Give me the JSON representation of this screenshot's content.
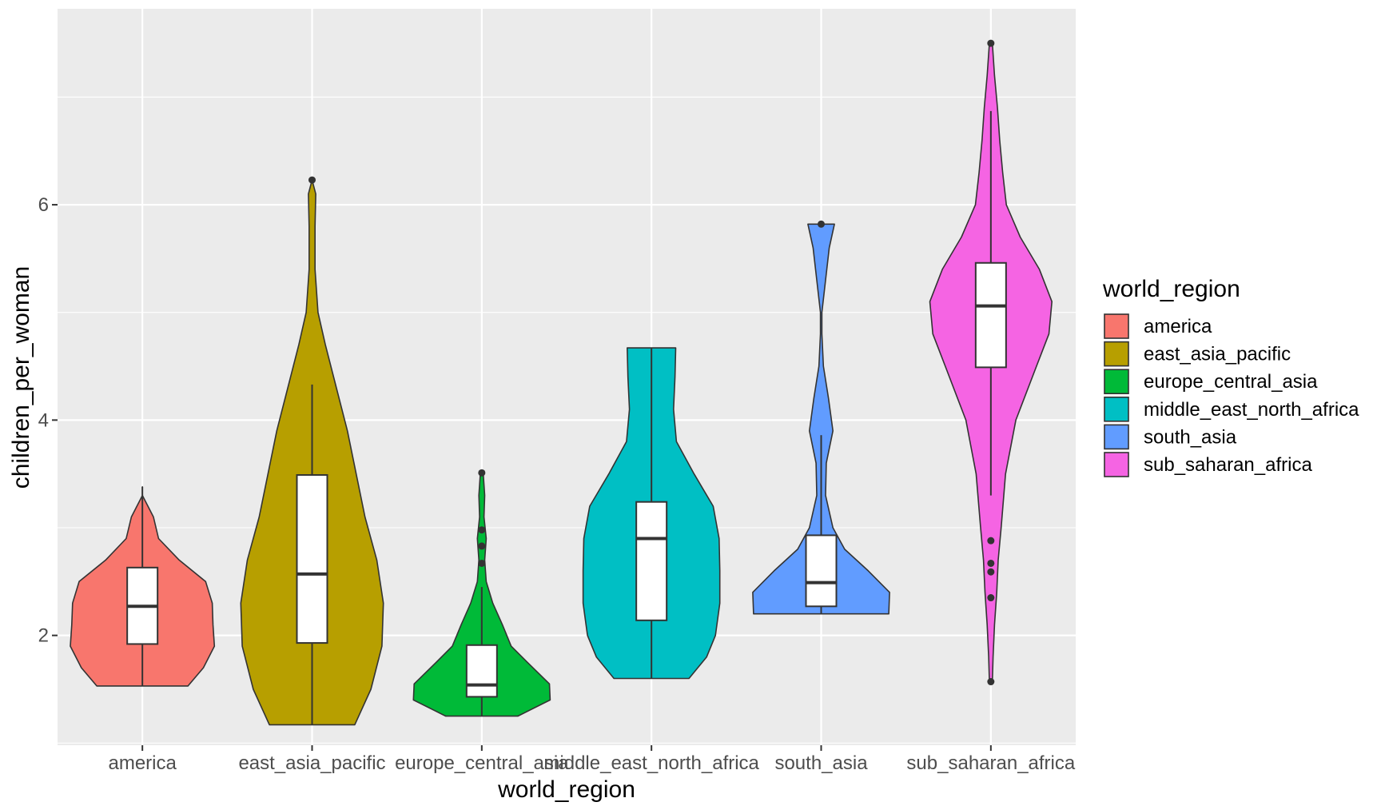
{
  "chart_data": {
    "type": "violin",
    "xlabel": "world_region",
    "ylabel": "children_per_woman",
    "categories": [
      "america",
      "east_asia_pacific",
      "europe_central_asia",
      "middle_east_north_africa",
      "south_asia",
      "sub_saharan_africa"
    ],
    "y_ticks": [
      2,
      4,
      6
    ],
    "ylim": [
      0.98,
      7.82
    ],
    "grid": true,
    "legend": {
      "title": "world_region",
      "position": "right"
    },
    "series": [
      {
        "name": "america",
        "color": "#F8766D",
        "violin_profile": [
          [
            1.53,
            0.62
          ],
          [
            1.7,
            0.83
          ],
          [
            1.9,
            0.98
          ],
          [
            2.1,
            0.96
          ],
          [
            2.3,
            0.95
          ],
          [
            2.5,
            0.86
          ],
          [
            2.7,
            0.5
          ],
          [
            2.9,
            0.22
          ],
          [
            3.1,
            0.15
          ],
          [
            3.3,
            0.0
          ],
          [
            3.38,
            0.0
          ]
        ],
        "box": {
          "min": 1.53,
          "q1": 1.92,
          "median": 2.27,
          "q3": 2.63,
          "max": 3.38
        },
        "outliers": []
      },
      {
        "name": "east_asia_pacific",
        "color": "#B79F00",
        "violin_profile": [
          [
            1.17,
            0.58
          ],
          [
            1.5,
            0.8
          ],
          [
            1.9,
            0.95
          ],
          [
            2.3,
            0.97
          ],
          [
            2.7,
            0.88
          ],
          [
            3.1,
            0.72
          ],
          [
            3.5,
            0.6
          ],
          [
            3.9,
            0.48
          ],
          [
            4.3,
            0.33
          ],
          [
            4.7,
            0.18
          ],
          [
            5.0,
            0.08
          ],
          [
            5.4,
            0.04
          ],
          [
            5.8,
            0.04
          ],
          [
            6.1,
            0.05
          ],
          [
            6.23,
            0.0
          ]
        ],
        "box": {
          "min": 1.17,
          "q1": 1.93,
          "median": 2.57,
          "q3": 3.49,
          "max": 4.33
        },
        "outliers": [
          6.23
        ]
      },
      {
        "name": "europe_central_asia",
        "color": "#00BA38",
        "violin_profile": [
          [
            1.25,
            0.49
          ],
          [
            1.4,
            0.93
          ],
          [
            1.55,
            0.92
          ],
          [
            1.75,
            0.62
          ],
          [
            1.9,
            0.4
          ],
          [
            2.1,
            0.28
          ],
          [
            2.3,
            0.15
          ],
          [
            2.5,
            0.06
          ],
          [
            2.7,
            0.04
          ],
          [
            2.9,
            0.06
          ],
          [
            3.1,
            0.03
          ],
          [
            3.3,
            0.04
          ],
          [
            3.5,
            0.02
          ]
        ],
        "box": {
          "min": 1.25,
          "q1": 1.43,
          "median": 1.54,
          "q3": 1.91,
          "max": 2.45
        },
        "outliers": [
          2.67,
          2.83,
          2.98,
          3.51
        ]
      },
      {
        "name": "middle_east_north_africa",
        "color": "#00BFC4",
        "violin_profile": [
          [
            1.6,
            0.51
          ],
          [
            1.8,
            0.75
          ],
          [
            2.0,
            0.87
          ],
          [
            2.3,
            0.93
          ],
          [
            2.6,
            0.93
          ],
          [
            2.9,
            0.92
          ],
          [
            3.2,
            0.84
          ],
          [
            3.5,
            0.58
          ],
          [
            3.8,
            0.34
          ],
          [
            4.1,
            0.3
          ],
          [
            4.4,
            0.32
          ],
          [
            4.67,
            0.33
          ]
        ],
        "box": {
          "min": 1.6,
          "q1": 2.14,
          "median": 2.9,
          "q3": 3.24,
          "max": 4.67
        },
        "outliers": []
      },
      {
        "name": "south_asia",
        "color": "#619CFF",
        "violin_profile": [
          [
            2.2,
            0.92
          ],
          [
            2.4,
            0.93
          ],
          [
            2.6,
            0.64
          ],
          [
            2.8,
            0.32
          ],
          [
            3.0,
            0.16
          ],
          [
            3.3,
            0.06
          ],
          [
            3.6,
            0.07
          ],
          [
            3.9,
            0.16
          ],
          [
            4.2,
            0.1
          ],
          [
            4.5,
            0.03
          ],
          [
            4.8,
            0.01
          ],
          [
            5.0,
            0.01
          ],
          [
            5.3,
            0.06
          ],
          [
            5.6,
            0.11
          ],
          [
            5.82,
            0.18
          ]
        ],
        "box": {
          "min": 2.2,
          "q1": 2.27,
          "median": 2.49,
          "q3": 2.93,
          "max": 3.86
        },
        "outliers": [
          5.82
        ]
      },
      {
        "name": "sub_saharan_africa",
        "color": "#F564E3",
        "violin_profile": [
          [
            1.57,
            0.02
          ],
          [
            1.8,
            0.03
          ],
          [
            2.1,
            0.05
          ],
          [
            2.4,
            0.08
          ],
          [
            2.7,
            0.1
          ],
          [
            3.0,
            0.14
          ],
          [
            3.5,
            0.2
          ],
          [
            4.0,
            0.34
          ],
          [
            4.5,
            0.62
          ],
          [
            4.8,
            0.79
          ],
          [
            5.1,
            0.83
          ],
          [
            5.4,
            0.66
          ],
          [
            5.7,
            0.4
          ],
          [
            6.0,
            0.21
          ],
          [
            6.3,
            0.16
          ],
          [
            6.6,
            0.12
          ],
          [
            6.9,
            0.09
          ],
          [
            7.2,
            0.05
          ],
          [
            7.5,
            0.02
          ]
        ],
        "box": {
          "min": 3.3,
          "q1": 4.49,
          "median": 5.06,
          "q3": 5.46,
          "max": 6.87
        },
        "outliers": [
          1.57,
          2.35,
          2.59,
          2.67,
          2.88,
          7.5
        ]
      }
    ]
  }
}
